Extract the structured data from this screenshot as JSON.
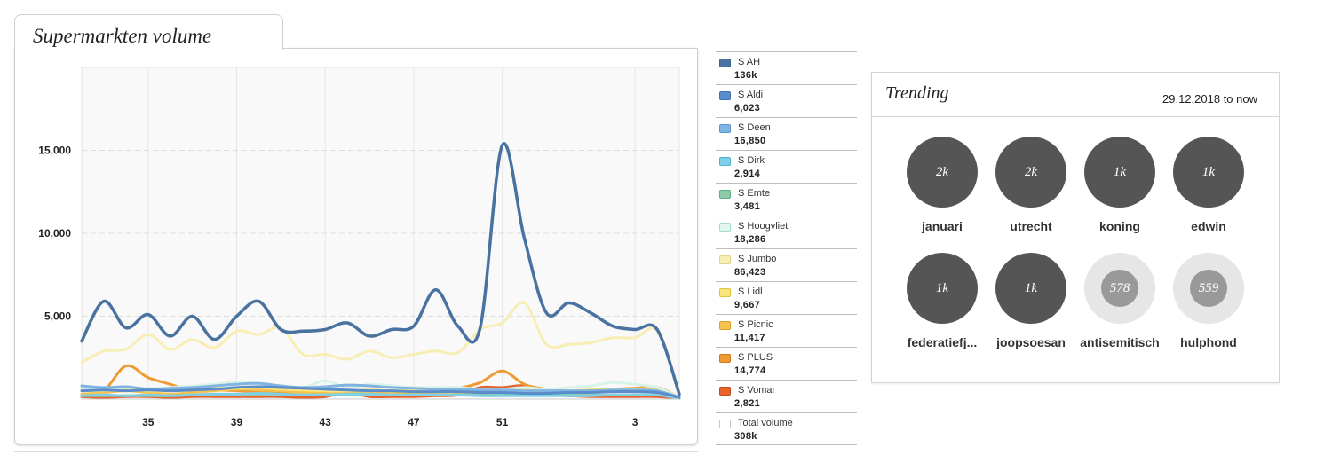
{
  "volume": {
    "title": "Supermarkten volume"
  },
  "chart_data": {
    "type": "line",
    "x": [
      32,
      33,
      34,
      35,
      36,
      37,
      38,
      39,
      40,
      41,
      42,
      43,
      44,
      45,
      46,
      47,
      48,
      49,
      50,
      51,
      52,
      53,
      54,
      1,
      2,
      3,
      4,
      5
    ],
    "x_ticks": [
      "35",
      "39",
      "43",
      "47",
      "51",
      "3"
    ],
    "y_ticks": [
      "5,000",
      "10,000",
      "15,000"
    ],
    "ylim": [
      0,
      20000
    ],
    "grid": true,
    "series": [
      {
        "name": "S AH",
        "color": "#4a72a0",
        "values": [
          3500,
          5900,
          4300,
          5100,
          3800,
          5000,
          3600,
          5000,
          5900,
          4200,
          4100,
          4200,
          4600,
          3800,
          4200,
          4400,
          6600,
          4400,
          4300,
          15300,
          9700,
          5200,
          5800,
          5200,
          4400,
          4200,
          4200,
          300
        ]
      },
      {
        "name": "S Aldi",
        "color": "#5a8ccc",
        "values": [
          500,
          550,
          500,
          550,
          500,
          550,
          600,
          700,
          750,
          700,
          650,
          600,
          550,
          500,
          500,
          450,
          450,
          450,
          400,
          400,
          350,
          350,
          400,
          400,
          450,
          450,
          400,
          100
        ]
      },
      {
        "name": "S Deen",
        "color": "#7fb3e0",
        "values": [
          800,
          700,
          750,
          600,
          650,
          700,
          800,
          900,
          950,
          800,
          700,
          750,
          850,
          800,
          700,
          650,
          600,
          600,
          550,
          550,
          500,
          500,
          500,
          500,
          550,
          550,
          500,
          100
        ]
      },
      {
        "name": "S Dirk",
        "color": "#7fd0e5",
        "values": [
          200,
          250,
          200,
          250,
          200,
          250,
          300,
          300,
          350,
          300,
          250,
          250,
          300,
          300,
          250,
          250,
          250,
          250,
          200,
          200,
          200,
          200,
          200,
          200,
          250,
          250,
          250,
          50
        ]
      },
      {
        "name": "S Emte",
        "color": "#8ccaa8",
        "values": [
          200,
          200,
          200,
          200,
          200,
          250,
          250,
          250,
          300,
          250,
          250,
          250,
          250,
          250,
          250,
          250,
          250,
          250,
          250,
          250,
          250,
          250,
          250,
          250,
          250,
          250,
          250,
          50
        ]
      },
      {
        "name": "S Hoogvliet",
        "color": "#d8f3e8",
        "values": [
          700,
          600,
          700,
          650,
          700,
          800,
          900,
          1000,
          900,
          800,
          700,
          1100,
          700,
          900,
          800,
          700,
          700,
          700,
          600,
          600,
          700,
          600,
          700,
          800,
          1000,
          900,
          700,
          100
        ]
      },
      {
        "name": "S Jumbo",
        "color": "#f7eeb4",
        "values": [
          2200,
          2900,
          3000,
          3900,
          3000,
          3600,
          3100,
          4100,
          3900,
          4300,
          2700,
          2700,
          2400,
          2900,
          2500,
          2700,
          2900,
          2800,
          4200,
          4600,
          5800,
          3300,
          3300,
          3400,
          3700,
          3700,
          4100,
          300
        ]
      },
      {
        "name": "S Lidl",
        "color": "#f9e57c",
        "values": [
          500,
          500,
          550,
          500,
          500,
          600,
          650,
          650,
          700,
          600,
          550,
          500,
          500,
          550,
          500,
          500,
          450,
          450,
          500,
          500,
          550,
          500,
          500,
          550,
          600,
          600,
          600,
          100
        ]
      },
      {
        "name": "S Picnic",
        "color": "#f6c350",
        "values": [
          300,
          400,
          500,
          400,
          300,
          400,
          500,
          600,
          550,
          500,
          400,
          400,
          400,
          400,
          350,
          350,
          350,
          350,
          400,
          400,
          400,
          350,
          350,
          500,
          600,
          600,
          650,
          100
        ]
      },
      {
        "name": "S PLUS",
        "color": "#ef9b35",
        "values": [
          200,
          500,
          2000,
          1300,
          900,
          500,
          550,
          500,
          450,
          400,
          400,
          500,
          450,
          300,
          350,
          400,
          500,
          650,
          1000,
          1700,
          900,
          600,
          500,
          550,
          600,
          650,
          700,
          100
        ]
      },
      {
        "name": "S Vomar",
        "color": "#e8622c",
        "values": [
          150,
          100,
          150,
          150,
          100,
          150,
          150,
          150,
          150,
          150,
          100,
          150,
          400,
          150,
          150,
          150,
          200,
          250,
          700,
          700,
          800,
          300,
          200,
          150,
          150,
          150,
          150,
          50
        ]
      }
    ]
  },
  "legend": [
    {
      "name": "S AH",
      "value": "136k",
      "color": "#3e6593",
      "fill": "#4a72a0"
    },
    {
      "name": "S Aldi",
      "value": "6,023",
      "color": "#3f73b0",
      "fill": "#5a8ccc"
    },
    {
      "name": "S Deen",
      "value": "16,850",
      "color": "#5698d4",
      "fill": "#7fb3e0"
    },
    {
      "name": "S Dirk",
      "value": "2,914",
      "color": "#4fb2cc",
      "fill": "#7fd0e5"
    },
    {
      "name": "S Emte",
      "value": "3,481",
      "color": "#5fab84",
      "fill": "#8ccaa8"
    },
    {
      "name": "S Hoogvliet",
      "value": "18,286",
      "color": "#a5dcc6",
      "fill": "#e2f7ee"
    },
    {
      "name": "S Jumbo",
      "value": "86,423",
      "color": "#e0d48a",
      "fill": "#f7eeb4"
    },
    {
      "name": "S Lidl",
      "value": "9,667",
      "color": "#e0c43c",
      "fill": "#f9e57c"
    },
    {
      "name": "S Picnic",
      "value": "11,417",
      "color": "#d9a22a",
      "fill": "#f6c350"
    },
    {
      "name": "S PLUS",
      "value": "14,774",
      "color": "#cf7a18",
      "fill": "#ef9b35"
    },
    {
      "name": "S Vomar",
      "value": "2,821",
      "color": "#c44a1a",
      "fill": "#e8622c"
    },
    {
      "name": "Total volume",
      "value": "308k",
      "color": "#c8c8c8",
      "fill": "#ffffff"
    }
  ],
  "trending": {
    "title": "Trending",
    "range": "29.12.2018 to now",
    "items": [
      {
        "label": "januari",
        "count": "2k",
        "style": "dark"
      },
      {
        "label": "utrecht",
        "count": "2k",
        "style": "dark"
      },
      {
        "label": "koning",
        "count": "1k",
        "style": "dark"
      },
      {
        "label": "edwin",
        "count": "1k",
        "style": "dark"
      },
      {
        "label": "federatiefj...",
        "count": "1k",
        "style": "dark"
      },
      {
        "label": "joopsoesan",
        "count": "1k",
        "style": "dark"
      },
      {
        "label": "antisemitisch",
        "count": "578",
        "style": "light"
      },
      {
        "label": "hulphond",
        "count": "559",
        "style": "light"
      }
    ]
  }
}
